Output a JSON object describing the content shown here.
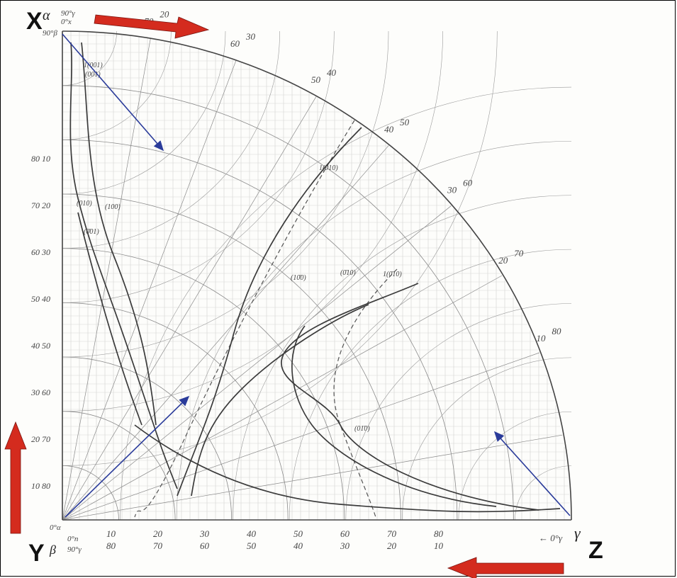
{
  "corners": {
    "x": "X",
    "y": "Y",
    "z": "Z"
  },
  "greek": {
    "alpha": "α",
    "beta": "β",
    "gamma": "γ"
  },
  "corner_notes": {
    "x_top": "90°γ",
    "x_bottom": "0°x",
    "x_origin": "90°β",
    "y_origin": "0°α",
    "y_top": "0°n",
    "y_bottom": "90°γ",
    "z_note": "← 0°γ"
  },
  "bottom_scale": [
    {
      "upper": "10",
      "lower": "80"
    },
    {
      "upper": "20",
      "lower": "70"
    },
    {
      "upper": "30",
      "lower": "60"
    },
    {
      "upper": "40",
      "lower": "50"
    },
    {
      "upper": "50",
      "lower": "40"
    },
    {
      "upper": "60",
      "lower": "30"
    },
    {
      "upper": "70",
      "lower": "20"
    },
    {
      "upper": "80",
      "lower": "10"
    }
  ],
  "left_scale": [
    "10 80",
    "20 70",
    "30 60",
    "40 50",
    "50 40",
    "60 30",
    "70 20",
    "80 10"
  ],
  "arc_scale": [
    {
      "a": "70",
      "b": "20"
    },
    {
      "a": "60",
      "b": "30"
    },
    {
      "a": "50",
      "b": "40"
    },
    {
      "a": "40",
      "b": "50"
    },
    {
      "a": "30",
      "b": "60"
    },
    {
      "a": "20",
      "b": "70"
    },
    {
      "a": "10",
      "b": "80"
    }
  ],
  "plane_labels": [
    "1(001)",
    "(001)",
    "(100)",
    "(010)",
    "(0̄01)",
    "(0̄10)",
    "1(0̄10)",
    "(10̄0)",
    "(01̄0)",
    "1(010)"
  ],
  "colors": {
    "grid": "#6b6b6b",
    "arrow_red": "#d42b1e",
    "arrow_blue": "#2a3b9a",
    "ink": "#111111"
  }
}
